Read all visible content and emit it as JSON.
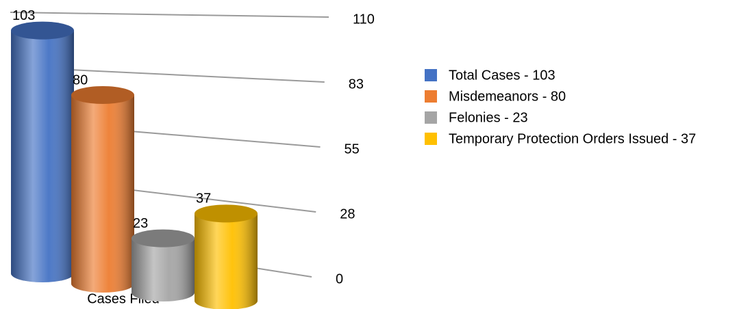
{
  "chart_data": {
    "type": "cylinder_bar",
    "categories": [
      "Cases Filed"
    ],
    "series": [
      {
        "name": "Total Cases - 103",
        "color": "#4472c4",
        "values": [
          103
        ]
      },
      {
        "name": "Misdemeanors - 80",
        "color": "#ed7d31",
        "values": [
          80
        ]
      },
      {
        "name": "Felonies - 23",
        "color": "#a5a5a5",
        "values": [
          23
        ]
      },
      {
        "name": "Temporary Protection Orders Issued - 37",
        "color": "#ffc000",
        "values": [
          37
        ]
      }
    ],
    "ylim": [
      0,
      110
    ],
    "yticks": [
      0,
      {
        "value": 27.5,
        "label": "28"
      },
      55,
      {
        "value": 82.5,
        "label": "83"
      },
      110
    ],
    "grid": true,
    "legend": "right"
  }
}
